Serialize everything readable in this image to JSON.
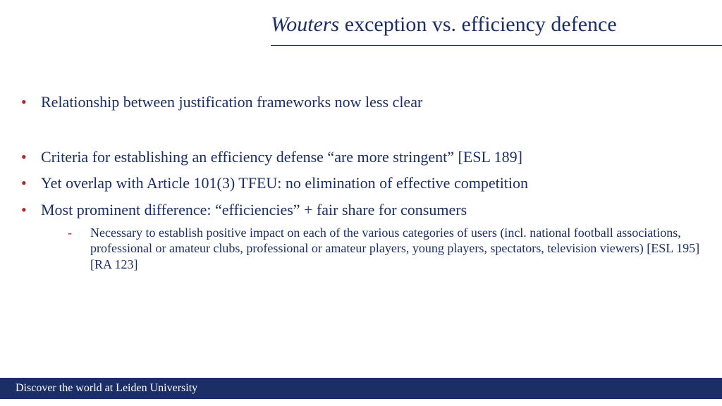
{
  "colors": {
    "text": "#1b2e66",
    "bullet": "#b22222",
    "footer_bg": "#1b2e66",
    "footer_text": "#ffffff",
    "background": "#ffffff"
  },
  "title": {
    "italic_part": "Wouters",
    "rest": " exception vs. efficiency defence",
    "fontsize": 30
  },
  "bullets": [
    {
      "text": "Relationship between justification frameworks now less clear",
      "gap_after": true
    },
    {
      "text": "Criteria for establishing an efficiency defense “are more stringent” [ESL 189]"
    },
    {
      "text": "Yet overlap with Article 101(3) TFEU: no elimination of effective competition"
    },
    {
      "text": "Most prominent difference: “efficiencies” + fair share for consumers",
      "sub": [
        "Necessary to establish positive impact on each of the various categories of users (incl. national football associations, professional or amateur clubs, professional or amateur players, young players, spectators, television viewers) [ESL 195] [RA 123]"
      ]
    }
  ],
  "footer": {
    "text": "Discover the world at Leiden University"
  },
  "typography": {
    "body_fontsize": 22,
    "sub_fontsize": 18,
    "footer_fontsize": 16,
    "font_family": "Georgia serif"
  }
}
